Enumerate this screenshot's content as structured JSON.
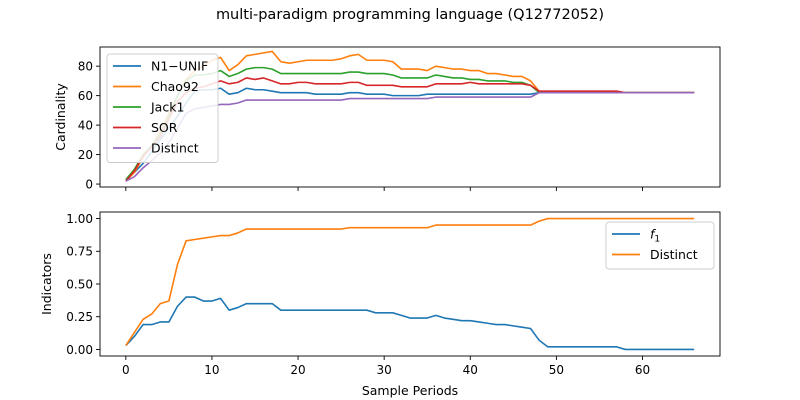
{
  "chart_data": {
    "type": "line",
    "title": "multi-paradigm programming language (Q12772052)",
    "colors": {
      "N1-UNIF": "#1f77b4",
      "Chao92": "#ff7f0e",
      "Jack1": "#2ca02c",
      "SOR": "#d62728",
      "Distinct": "#9467bd",
      "f1": "#1f77b4",
      "Distinct2": "#ff7f0e"
    },
    "panels": [
      {
        "ylabel": "Cardinality",
        "xlabel": "",
        "xlim": [
          -3,
          69
        ],
        "ylim": [
          -2,
          93
        ],
        "yticks": [
          0,
          20,
          40,
          60,
          80
        ],
        "ytick_labels": [
          "0",
          "20",
          "40",
          "60",
          "80"
        ],
        "xticks": [
          0,
          10,
          20,
          30,
          40,
          50,
          60
        ],
        "xtick_labels": [],
        "legend_position": "top-left",
        "series": [
          {
            "name": "N1−UNIF",
            "color": "#1f77b4",
            "x": [
              0,
              1,
              2,
              3,
              4,
              5,
              6,
              7,
              8,
              9,
              10,
              11,
              12,
              13,
              14,
              15,
              16,
              17,
              18,
              19,
              20,
              21,
              22,
              23,
              24,
              25,
              26,
              27,
              28,
              29,
              30,
              31,
              32,
              33,
              34,
              35,
              36,
              37,
              38,
              39,
              40,
              41,
              42,
              43,
              44,
              45,
              46,
              47,
              48,
              49,
              50,
              51,
              52,
              53,
              54,
              55,
              56,
              57,
              58,
              59,
              60,
              61,
              62,
              63,
              64,
              65,
              66
            ],
            "y": [
              3,
              8,
              14,
              22,
              30,
              38,
              46,
              55,
              63,
              64,
              64,
              65,
              61,
              62,
              65,
              64,
              64,
              63,
              62,
              62,
              62,
              62,
              61,
              61,
              61,
              61,
              62,
              62,
              61,
              61,
              61,
              60,
              60,
              60,
              60,
              61,
              61,
              61,
              61,
              61,
              61,
              61,
              61,
              61,
              61,
              61,
              61,
              61,
              62,
              62,
              62,
              62,
              62,
              62,
              62,
              62,
              62,
              62,
              62,
              62,
              62,
              62,
              62,
              62,
              62,
              62,
              62
            ]
          },
          {
            "name": "Chao92",
            "color": "#ff7f0e",
            "x": [
              0,
              1,
              2,
              3,
              4,
              5,
              6,
              7,
              8,
              9,
              10,
              11,
              12,
              13,
              14,
              15,
              16,
              17,
              18,
              19,
              20,
              21,
              22,
              23,
              24,
              25,
              26,
              27,
              28,
              29,
              30,
              31,
              32,
              33,
              34,
              35,
              36,
              37,
              38,
              39,
              40,
              41,
              42,
              43,
              44,
              45,
              46,
              47,
              48,
              49,
              50,
              51,
              52,
              53,
              54,
              55,
              56,
              57,
              58,
              59,
              60,
              61,
              62,
              63,
              64,
              65,
              66
            ],
            "y": [
              2,
              8,
              18,
              26,
              36,
              48,
              60,
              71,
              77,
              80,
              84,
              86,
              77,
              81,
              87,
              88,
              89,
              90,
              83,
              82,
              83,
              84,
              84,
              84,
              84,
              85,
              87,
              88,
              84,
              84,
              84,
              83,
              78,
              78,
              78,
              77,
              80,
              79,
              78,
              78,
              77,
              77,
              75,
              75,
              74,
              73,
              73,
              70,
              63,
              63,
              63,
              63,
              63,
              63,
              63,
              63,
              63,
              63,
              62,
              62,
              62,
              62,
              62,
              62,
              62,
              62,
              62
            ]
          },
          {
            "name": "Jack1",
            "color": "#2ca02c",
            "x": [
              0,
              1,
              2,
              3,
              4,
              5,
              6,
              7,
              8,
              9,
              10,
              11,
              12,
              13,
              14,
              15,
              16,
              17,
              18,
              19,
              20,
              21,
              22,
              23,
              24,
              25,
              26,
              27,
              28,
              29,
              30,
              31,
              32,
              33,
              34,
              35,
              36,
              37,
              38,
              39,
              40,
              41,
              42,
              43,
              44,
              45,
              46,
              47,
              48,
              49,
              50,
              51,
              52,
              53,
              54,
              55,
              56,
              57,
              58,
              59,
              60,
              61,
              62,
              63,
              64,
              65,
              66
            ],
            "y": [
              3,
              10,
              20,
              26,
              34,
              46,
              60,
              70,
              74,
              74,
              75,
              77,
              73,
              75,
              78,
              79,
              79,
              78,
              75,
              75,
              75,
              75,
              75,
              75,
              75,
              75,
              76,
              76,
              75,
              75,
              75,
              74,
              72,
              72,
              72,
              72,
              74,
              73,
              72,
              72,
              71,
              71,
              70,
              70,
              70,
              69,
              69,
              67,
              62,
              62,
              62,
              62,
              62,
              62,
              62,
              62,
              62,
              62,
              62,
              62,
              62,
              62,
              62,
              62,
              62,
              62,
              62
            ]
          },
          {
            "name": "SOR",
            "color": "#d62728",
            "x": [
              0,
              1,
              2,
              3,
              4,
              5,
              6,
              7,
              8,
              9,
              10,
              11,
              12,
              13,
              14,
              15,
              16,
              17,
              18,
              19,
              20,
              21,
              22,
              23,
              24,
              25,
              26,
              27,
              28,
              29,
              30,
              31,
              32,
              33,
              34,
              35,
              36,
              37,
              38,
              39,
              40,
              41,
              42,
              43,
              44,
              45,
              46,
              47,
              48,
              49,
              50,
              51,
              52,
              53,
              54,
              55,
              56,
              57,
              58,
              59,
              60,
              61,
              62,
              63,
              64,
              65,
              66
            ],
            "y": [
              2,
              9,
              19,
              25,
              32,
              44,
              56,
              62,
              65,
              66,
              68,
              70,
              68,
              69,
              72,
              71,
              72,
              70,
              68,
              68,
              69,
              69,
              68,
              68,
              68,
              68,
              69,
              69,
              67,
              67,
              67,
              67,
              66,
              66,
              66,
              66,
              68,
              68,
              68,
              68,
              69,
              68,
              68,
              68,
              68,
              68,
              68,
              67,
              63,
              63,
              63,
              63,
              63,
              63,
              63,
              63,
              63,
              63,
              62,
              62,
              62,
              62,
              62,
              62,
              62,
              62,
              62
            ]
          },
          {
            "name": "Distinct",
            "color": "#9467bd",
            "x": [
              0,
              1,
              2,
              3,
              4,
              5,
              6,
              7,
              8,
              9,
              10,
              11,
              12,
              13,
              14,
              15,
              16,
              17,
              18,
              19,
              20,
              21,
              22,
              23,
              24,
              25,
              26,
              27,
              28,
              29,
              30,
              31,
              32,
              33,
              34,
              35,
              36,
              37,
              38,
              39,
              40,
              41,
              42,
              43,
              44,
              45,
              46,
              47,
              48,
              49,
              50,
              51,
              52,
              53,
              54,
              55,
              56,
              57,
              58,
              59,
              60,
              61,
              62,
              63,
              64,
              65,
              66
            ],
            "y": [
              2,
              5,
              11,
              16,
              21,
              28,
              38,
              48,
              51,
              52,
              53,
              54,
              54,
              55,
              57,
              57,
              57,
              57,
              57,
              57,
              57,
              57,
              57,
              57,
              57,
              57,
              58,
              58,
              58,
              58,
              58,
              58,
              58,
              58,
              58,
              58,
              59,
              59,
              59,
              59,
              59,
              59,
              59,
              59,
              59,
              59,
              59,
              59,
              62,
              62,
              62,
              62,
              62,
              62,
              62,
              62,
              62,
              62,
              62,
              62,
              62,
              62,
              62,
              62,
              62,
              62,
              62
            ]
          }
        ]
      },
      {
        "ylabel": "Indicators",
        "xlabel": "Sample Periods",
        "xlim": [
          -3,
          69
        ],
        "ylim": [
          -0.05,
          1.05
        ],
        "yticks": [
          0,
          0.25,
          0.5,
          0.75,
          1.0
        ],
        "ytick_labels": [
          "0.00",
          "0.25",
          "0.50",
          "0.75",
          "1.00"
        ],
        "xticks": [
          0,
          10,
          20,
          30,
          40,
          50,
          60
        ],
        "xtick_labels": [
          "0",
          "10",
          "20",
          "30",
          "40",
          "50",
          "60"
        ],
        "legend_position": "top-right",
        "series": [
          {
            "name": "f1",
            "color": "#1f77b4",
            "x": [
              0,
              1,
              2,
              3,
              4,
              5,
              6,
              7,
              8,
              9,
              10,
              11,
              12,
              13,
              14,
              15,
              16,
              17,
              18,
              19,
              20,
              21,
              22,
              23,
              24,
              25,
              26,
              27,
              28,
              29,
              30,
              31,
              32,
              33,
              34,
              35,
              36,
              37,
              38,
              39,
              40,
              41,
              42,
              43,
              44,
              45,
              46,
              47,
              48,
              49,
              50,
              51,
              52,
              53,
              54,
              55,
              56,
              57,
              58,
              59,
              60,
              61,
              62,
              63,
              64,
              65,
              66
            ],
            "y": [
              0.03,
              0.1,
              0.19,
              0.19,
              0.21,
              0.21,
              0.33,
              0.4,
              0.4,
              0.37,
              0.37,
              0.39,
              0.3,
              0.32,
              0.35,
              0.35,
              0.35,
              0.35,
              0.3,
              0.3,
              0.3,
              0.3,
              0.3,
              0.3,
              0.3,
              0.3,
              0.3,
              0.3,
              0.3,
              0.28,
              0.28,
              0.28,
              0.26,
              0.24,
              0.24,
              0.24,
              0.26,
              0.24,
              0.23,
              0.22,
              0.22,
              0.21,
              0.2,
              0.19,
              0.19,
              0.18,
              0.17,
              0.16,
              0.07,
              0.02,
              0.02,
              0.02,
              0.02,
              0.02,
              0.02,
              0.02,
              0.02,
              0.02,
              0,
              0,
              0,
              0,
              0,
              0,
              0,
              0,
              0
            ]
          },
          {
            "name": "Distinct",
            "color": "#ff7f0e",
            "x": [
              0,
              1,
              2,
              3,
              4,
              5,
              6,
              7,
              8,
              9,
              10,
              11,
              12,
              13,
              14,
              15,
              16,
              17,
              18,
              19,
              20,
              21,
              22,
              23,
              24,
              25,
              26,
              27,
              28,
              29,
              30,
              31,
              32,
              33,
              34,
              35,
              36,
              37,
              38,
              39,
              40,
              41,
              42,
              43,
              44,
              45,
              46,
              47,
              48,
              49,
              50,
              51,
              52,
              53,
              54,
              55,
              56,
              57,
              58,
              59,
              60,
              61,
              62,
              63,
              64,
              65,
              66
            ],
            "y": [
              0.03,
              0.13,
              0.23,
              0.27,
              0.35,
              0.37,
              0.65,
              0.83,
              0.84,
              0.85,
              0.86,
              0.87,
              0.87,
              0.89,
              0.92,
              0.92,
              0.92,
              0.92,
              0.92,
              0.92,
              0.92,
              0.92,
              0.92,
              0.92,
              0.92,
              0.92,
              0.93,
              0.93,
              0.93,
              0.93,
              0.93,
              0.93,
              0.93,
              0.93,
              0.93,
              0.93,
              0.95,
              0.95,
              0.95,
              0.95,
              0.95,
              0.95,
              0.95,
              0.95,
              0.95,
              0.95,
              0.95,
              0.95,
              0.98,
              1,
              1,
              1,
              1,
              1,
              1,
              1,
              1,
              1,
              1,
              1,
              1,
              1,
              1,
              1,
              1,
              1,
              1
            ]
          }
        ]
      }
    ]
  }
}
